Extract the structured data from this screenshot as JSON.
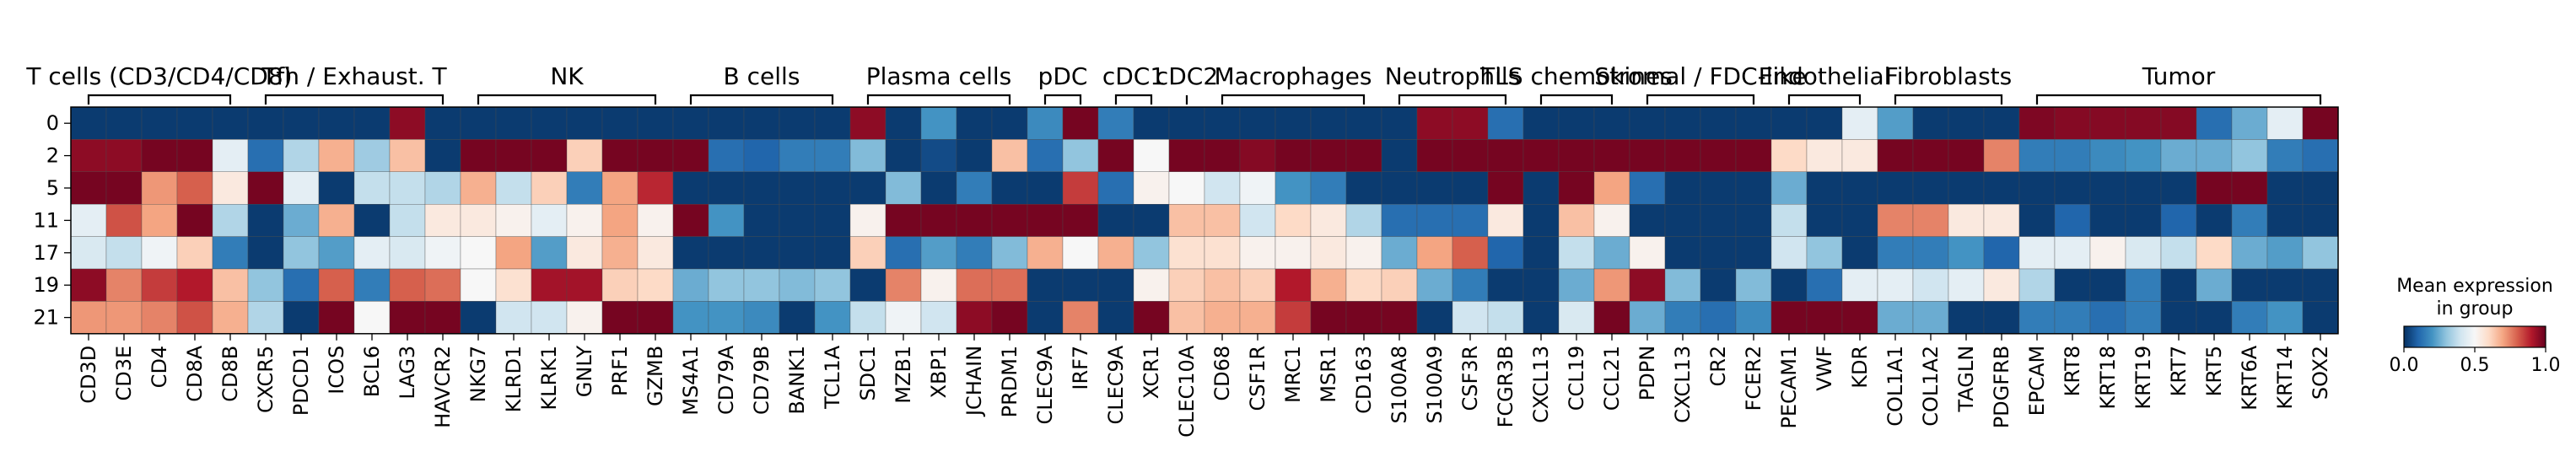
{
  "chart_data": {
    "type": "heatmap",
    "title": "",
    "xlabel": "",
    "ylabel": "",
    "colorscale": "RdBu_r",
    "colorbar": {
      "title_lines": [
        "Mean expression",
        "in group"
      ],
      "ticks": [
        "0.0",
        "0.5",
        "1.0"
      ],
      "range": [
        0,
        1
      ]
    },
    "rows": [
      "0",
      "2",
      "5",
      "11",
      "17",
      "19",
      "21"
    ],
    "genes": [
      "CD3D",
      "CD3E",
      "CD4",
      "CD8A",
      "CD8B",
      "CXCR5",
      "PDCD1",
      "ICOS",
      "BCL6",
      "LAG3",
      "HAVCR2",
      "NKG7",
      "KLRD1",
      "KLRK1",
      "GNLY",
      "PRF1",
      "GZMB",
      "MS4A1",
      "CD79A",
      "CD79B",
      "BANK1",
      "TCL1A",
      "SDC1",
      "MZB1",
      "XBP1",
      "JCHAIN",
      "PRDM1",
      "CLEC9A",
      "IRF7",
      "CLEC9A",
      "XCR1",
      "CLEC10A",
      "CD68",
      "CSF1R",
      "MRC1",
      "MSR1",
      "CD163",
      "S100A8",
      "S100A9",
      "CSF3R",
      "FCGR3B",
      "CXCL13",
      "CCL19",
      "CCL21",
      "PDPN",
      "CXCL13",
      "CR2",
      "FCER2",
      "PECAM1",
      "VWF",
      "KDR",
      "COL1A1",
      "COL1A2",
      "TAGLN",
      "PDGFRB",
      "EPCAM",
      "KRT8",
      "KRT18",
      "KRT19",
      "KRT7",
      "KRT5",
      "KRT6A",
      "KRT14",
      "SOX2"
    ],
    "groups": [
      {
        "label": "T cells (CD3/CD4/CD8)",
        "start": 0,
        "end": 4
      },
      {
        "label": "Tfh / Exhaust. T",
        "start": 5,
        "end": 10
      },
      {
        "label": "NK",
        "start": 11,
        "end": 16
      },
      {
        "label": "B cells",
        "start": 17,
        "end": 21
      },
      {
        "label": "Plasma cells",
        "start": 22,
        "end": 26
      },
      {
        "label": "pDC",
        "start": 27,
        "end": 28
      },
      {
        "label": "cDC1",
        "start": 29,
        "end": 30
      },
      {
        "label": "cDC2",
        "start": 31,
        "end": 31
      },
      {
        "label": "Macrophages",
        "start": 32,
        "end": 36
      },
      {
        "label": "Neutrophils",
        "start": 37,
        "end": 40
      },
      {
        "label": "TLS chemokines",
        "start": 41,
        "end": 43
      },
      {
        "label": "Stromal / FDC-like",
        "start": 44,
        "end": 47
      },
      {
        "label": "Endothelial",
        "start": 48,
        "end": 50
      },
      {
        "label": "Fibroblasts",
        "start": 51,
        "end": 54
      },
      {
        "label": "Tumor",
        "start": 55,
        "end": 63
      }
    ],
    "values": [
      [
        0.02,
        0.02,
        0.02,
        0.02,
        0.02,
        0.02,
        0.02,
        0.02,
        0.02,
        0.95,
        0.02,
        0.02,
        0.02,
        0.02,
        0.02,
        0.02,
        0.02,
        0.02,
        0.02,
        0.02,
        0.02,
        0.02,
        0.95,
        0.02,
        0.2,
        0.02,
        0.02,
        0.18,
        0.98,
        0.15,
        0.02,
        0.02,
        0.02,
        0.02,
        0.02,
        0.02,
        0.02,
        0.02,
        0.95,
        0.95,
        0.12,
        0.02,
        0.02,
        0.02,
        0.02,
        0.02,
        0.02,
        0.02,
        0.02,
        0.02,
        0.45,
        0.22,
        0.02,
        0.02,
        0.02,
        0.97,
        0.96,
        0.96,
        0.96,
        0.96,
        0.12,
        0.25,
        0.45,
        0.98
      ],
      [
        0.95,
        0.95,
        0.98,
        0.98,
        0.45,
        0.12,
        0.35,
        0.68,
        0.32,
        0.65,
        0.02,
        0.98,
        0.98,
        0.98,
        0.62,
        0.98,
        0.98,
        0.98,
        0.12,
        0.1,
        0.15,
        0.15,
        0.28,
        0.02,
        0.05,
        0.02,
        0.65,
        0.12,
        0.3,
        0.98,
        0.5,
        0.98,
        0.98,
        0.96,
        0.98,
        0.98,
        0.98,
        0.02,
        0.98,
        0.98,
        0.98,
        0.98,
        0.98,
        0.98,
        0.98,
        0.98,
        0.98,
        0.98,
        0.6,
        0.55,
        0.55,
        0.98,
        0.98,
        0.98,
        0.75,
        0.15,
        0.15,
        0.18,
        0.2,
        0.25,
        0.25,
        0.3,
        0.15,
        0.12
      ],
      [
        0.98,
        0.98,
        0.72,
        0.8,
        0.55,
        0.98,
        0.45,
        0.02,
        0.38,
        0.38,
        0.35,
        0.68,
        0.38,
        0.62,
        0.15,
        0.7,
        0.88,
        0.02,
        0.02,
        0.02,
        0.02,
        0.02,
        0.02,
        0.28,
        0.02,
        0.15,
        0.02,
        0.02,
        0.85,
        0.12,
        0.52,
        0.5,
        0.4,
        0.48,
        0.2,
        0.15,
        0.02,
        0.02,
        0.02,
        0.02,
        0.98,
        0.02,
        0.98,
        0.7,
        0.12,
        0.02,
        0.02,
        0.02,
        0.25,
        0.02,
        0.02,
        0.02,
        0.02,
        0.02,
        0.02,
        0.02,
        0.02,
        0.02,
        0.02,
        0.02,
        0.98,
        0.98,
        0.02,
        0.02
      ],
      [
        0.45,
        0.82,
        0.7,
        0.98,
        0.35,
        0.02,
        0.25,
        0.68,
        0.02,
        0.38,
        0.55,
        0.55,
        0.52,
        0.45,
        0.52,
        0.7,
        0.52,
        0.98,
        0.2,
        0.02,
        0.02,
        0.02,
        0.52,
        0.98,
        0.98,
        0.98,
        0.98,
        0.98,
        0.98,
        0.02,
        0.02,
        0.65,
        0.65,
        0.4,
        0.6,
        0.55,
        0.35,
        0.12,
        0.12,
        0.12,
        0.55,
        0.02,
        0.65,
        0.52,
        0.02,
        0.02,
        0.02,
        0.02,
        0.38,
        0.02,
        0.02,
        0.75,
        0.75,
        0.55,
        0.55,
        0.02,
        0.1,
        0.02,
        0.02,
        0.1,
        0.02,
        0.15,
        0.02,
        0.02
      ],
      [
        0.42,
        0.38,
        0.48,
        0.62,
        0.15,
        0.02,
        0.3,
        0.22,
        0.45,
        0.42,
        0.48,
        0.5,
        0.7,
        0.22,
        0.55,
        0.68,
        0.55,
        0.02,
        0.02,
        0.02,
        0.02,
        0.02,
        0.62,
        0.12,
        0.22,
        0.15,
        0.28,
        0.68,
        0.5,
        0.68,
        0.3,
        0.58,
        0.58,
        0.52,
        0.52,
        0.55,
        0.52,
        0.25,
        0.7,
        0.8,
        0.1,
        0.02,
        0.38,
        0.25,
        0.52,
        0.02,
        0.02,
        0.02,
        0.4,
        0.3,
        0.02,
        0.15,
        0.15,
        0.2,
        0.1,
        0.45,
        0.45,
        0.52,
        0.42,
        0.38,
        0.6,
        0.25,
        0.22,
        0.3
      ],
      [
        0.95,
        0.75,
        0.85,
        0.9,
        0.65,
        0.3,
        0.12,
        0.8,
        0.15,
        0.8,
        0.78,
        0.5,
        0.58,
        0.92,
        0.92,
        0.62,
        0.6,
        0.25,
        0.3,
        0.3,
        0.28,
        0.3,
        0.02,
        0.75,
        0.52,
        0.78,
        0.78,
        0.02,
        0.02,
        0.02,
        0.52,
        0.62,
        0.65,
        0.62,
        0.9,
        0.68,
        0.6,
        0.62,
        0.25,
        0.15,
        0.02,
        0.02,
        0.25,
        0.72,
        0.95,
        0.28,
        0.02,
        0.28,
        0.02,
        0.12,
        0.45,
        0.45,
        0.4,
        0.45,
        0.55,
        0.35,
        0.02,
        0.02,
        0.15,
        0.02,
        0.25,
        0.02,
        0.02,
        0.02
      ],
      [
        0.72,
        0.72,
        0.75,
        0.82,
        0.68,
        0.35,
        0.02,
        0.98,
        0.5,
        0.98,
        0.98,
        0.02,
        0.4,
        0.4,
        0.52,
        0.98,
        0.98,
        0.2,
        0.2,
        0.18,
        0.02,
        0.2,
        0.38,
        0.48,
        0.4,
        0.95,
        0.98,
        0.02,
        0.75,
        0.02,
        0.98,
        0.65,
        0.68,
        0.68,
        0.85,
        0.98,
        0.98,
        0.98,
        0.02,
        0.4,
        0.38,
        0.02,
        0.42,
        0.98,
        0.25,
        0.15,
        0.12,
        0.18,
        0.98,
        0.98,
        0.98,
        0.25,
        0.25,
        0.02,
        0.02,
        0.15,
        0.15,
        0.12,
        0.15,
        0.02,
        0.02,
        0.15,
        0.2,
        0.02
      ]
    ]
  }
}
